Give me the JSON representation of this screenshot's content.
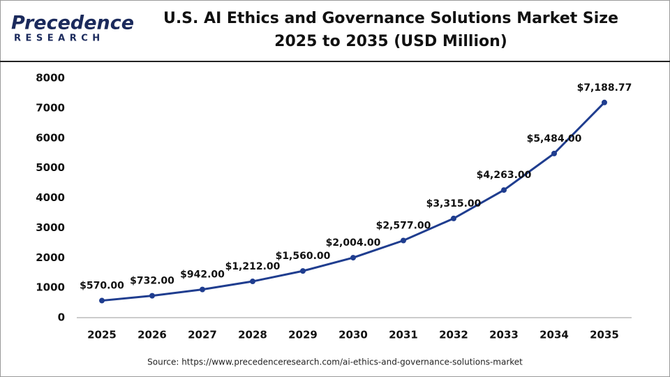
{
  "brand": {
    "name": "Precedence",
    "tagline": "RESEARCH"
  },
  "chart_data": {
    "type": "line",
    "title": "U.S. AI Ethics and Governance Solutions Market Size",
    "subtitle": "2025 to 2035 (USD Million)",
    "categories": [
      "2025",
      "2026",
      "2027",
      "2028",
      "2029",
      "2030",
      "2031",
      "2032",
      "2033",
      "2034",
      "2035"
    ],
    "series": [
      {
        "name": "Market Size",
        "color": "#1f3d8f",
        "values": [
          570,
          732,
          942,
          1212,
          1560,
          2004,
          2577,
          3315,
          4263,
          5484,
          7188.77
        ],
        "value_labels": [
          "$570.00",
          "$732.00",
          "$942.00",
          "$1,212.00",
          "$1,560.00",
          "$2,004.00",
          "$2,577.00",
          "$3,315.00",
          "$4,263.00",
          "$5,484.00",
          "$7,188.77"
        ]
      }
    ],
    "ylim": [
      0,
      8000
    ],
    "yticks": [
      0,
      1000,
      2000,
      3000,
      4000,
      5000,
      6000,
      7000,
      8000
    ],
    "grid": false,
    "source": "Source: https://www.precedenceresearch.com/ai-ethics-and-governance-solutions-market"
  }
}
